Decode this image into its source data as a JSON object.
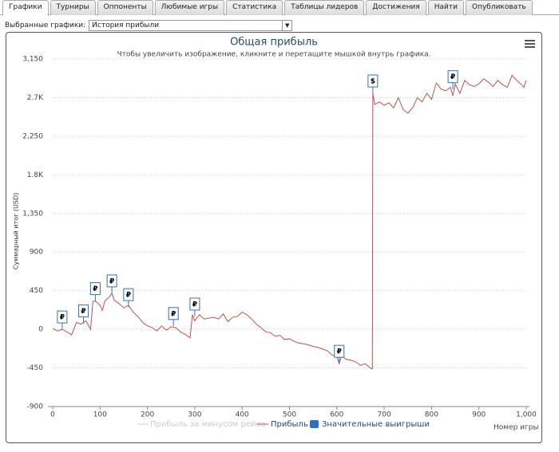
{
  "tabs": [
    "Графики",
    "Турниры",
    "Оппоненты",
    "Любимые игры",
    "Статистика",
    "Таблицы лидеров",
    "Достижения",
    "Найти",
    "Опубликовать"
  ],
  "selector": {
    "label": "Выбранные графики:",
    "value": "История прибыли"
  },
  "chart_data": {
    "type": "line",
    "title": "Общая прибыль",
    "subtitle": "Чтобы увеличить изображение, кликните и перетащите мышкой внутрь графика.",
    "x_label": "Номер игры",
    "y_label": "Суммарный итог (USD)",
    "xlim": [
      0,
      1000
    ],
    "xticks": [
      0,
      100,
      200,
      300,
      400,
      500,
      600,
      700,
      800,
      900,
      {
        "value": 1000,
        "label": "1,000"
      }
    ],
    "ylim": [
      -900,
      3150
    ],
    "yticks": [
      -900,
      -450,
      0,
      450,
      900,
      {
        "value": 1350,
        "label": "1,350"
      },
      {
        "value": 1800,
        "label": "1.8K"
      },
      {
        "value": 2250,
        "label": "2,250"
      },
      {
        "value": 2700,
        "label": "2.7K"
      },
      {
        "value": 3150,
        "label": "3,150"
      }
    ],
    "grid": true,
    "hidden_series": [
      {
        "name": "Прибыль за минусом рейка",
        "color": "#cccccc"
      }
    ],
    "series": [
      {
        "name": "Прибыль",
        "color": "#c0504d",
        "x": [
          0,
          10,
          20,
          30,
          40,
          50,
          60,
          70,
          80,
          85,
          90,
          100,
          105,
          110,
          120,
          125,
          130,
          140,
          150,
          160,
          170,
          180,
          190,
          200,
          210,
          220,
          230,
          240,
          250,
          260,
          270,
          280,
          290,
          295,
          300,
          310,
          320,
          340,
          350,
          360,
          370,
          380,
          390,
          400,
          410,
          420,
          430,
          440,
          450,
          460,
          470,
          480,
          490,
          500,
          510,
          520,
          530,
          540,
          550,
          560,
          570,
          580,
          590,
          600,
          605,
          610,
          620,
          630,
          640,
          650,
          660,
          670,
          675,
          676,
          680,
          690,
          700,
          710,
          720,
          730,
          740,
          750,
          760,
          770,
          780,
          790,
          800,
          810,
          820,
          830,
          840,
          845,
          850,
          860,
          870,
          880,
          890,
          900,
          910,
          920,
          930,
          940,
          950,
          960,
          970,
          980,
          990,
          995,
          1000
        ],
        "values": [
          10,
          -20,
          0,
          -30,
          -65,
          80,
          60,
          100,
          0,
          325,
          330,
          280,
          220,
          330,
          380,
          420,
          340,
          300,
          250,
          280,
          200,
          150,
          80,
          40,
          20,
          -20,
          40,
          -10,
          30,
          20,
          -30,
          -60,
          -100,
          170,
          100,
          170,
          120,
          140,
          120,
          180,
          90,
          140,
          150,
          200,
          170,
          120,
          60,
          20,
          -30,
          -40,
          -80,
          -70,
          -120,
          -110,
          -140,
          -160,
          -170,
          -180,
          -200,
          -210,
          -230,
          -250,
          -300,
          -320,
          -400,
          -310,
          -350,
          -360,
          -380,
          -420,
          -400,
          -450,
          -460,
          2750,
          2620,
          2650,
          2610,
          2640,
          2580,
          2700,
          2560,
          2520,
          2580,
          2700,
          2650,
          2750,
          2680,
          2870,
          2800,
          2780,
          2820,
          2720,
          2860,
          2750,
          2900,
          2850,
          2830,
          2860,
          2920,
          2880,
          2830,
          2900,
          2850,
          2820,
          2960,
          2900,
          2850,
          2820,
          2900
        ]
      }
    ],
    "flags_name": "Значительные выигрыши",
    "flags_color": "#2f6fc9",
    "flags": [
      {
        "x": 20,
        "y": 0,
        "text": "₽"
      },
      {
        "x": 65,
        "y": 70,
        "text": "₽"
      },
      {
        "x": 90,
        "y": 330,
        "text": "₽"
      },
      {
        "x": 125,
        "y": 420,
        "text": "₽"
      },
      {
        "x": 160,
        "y": 260,
        "text": "₽"
      },
      {
        "x": 255,
        "y": 40,
        "text": "₽"
      },
      {
        "x": 300,
        "y": 150,
        "text": "₽"
      },
      {
        "x": 605,
        "y": -400,
        "text": "₽"
      },
      {
        "x": 676,
        "y": 2750,
        "text": "$"
      },
      {
        "x": 845,
        "y": 2800,
        "text": "₽"
      }
    ]
  }
}
